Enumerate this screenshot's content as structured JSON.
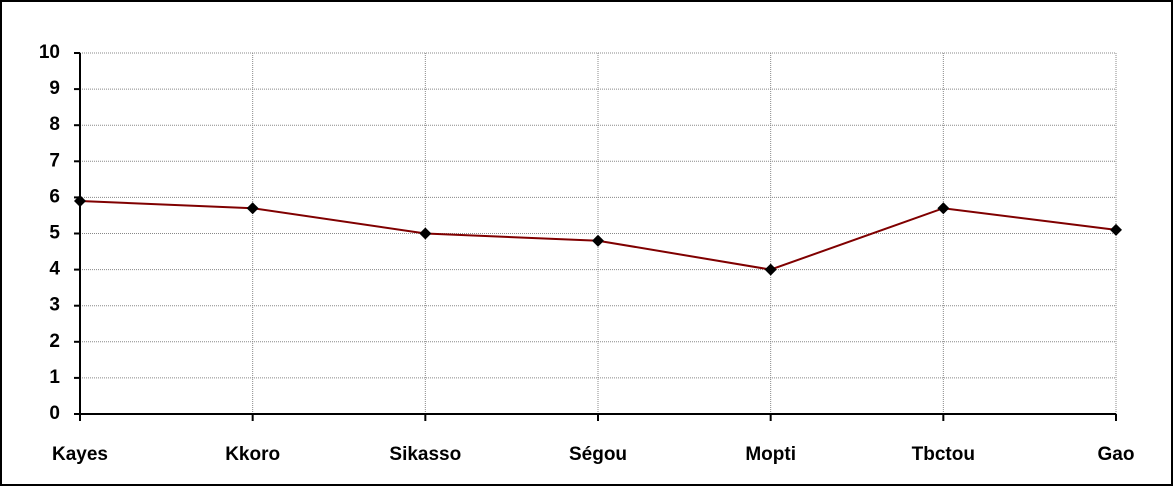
{
  "chart_data": {
    "type": "line",
    "categories": [
      "Kayes",
      "Kkoro",
      "Sikasso",
      "Ségou",
      "Mopti",
      "Tbctou",
      "Gao"
    ],
    "values": [
      5.9,
      5.7,
      5.0,
      4.8,
      4.0,
      5.7,
      5.1
    ],
    "color": "#800000",
    "marker_color": "#000000",
    "ylim": [
      0,
      10
    ],
    "yticks": [
      0,
      1,
      2,
      3,
      4,
      5,
      6,
      7,
      8,
      9,
      10
    ],
    "grid": true
  }
}
